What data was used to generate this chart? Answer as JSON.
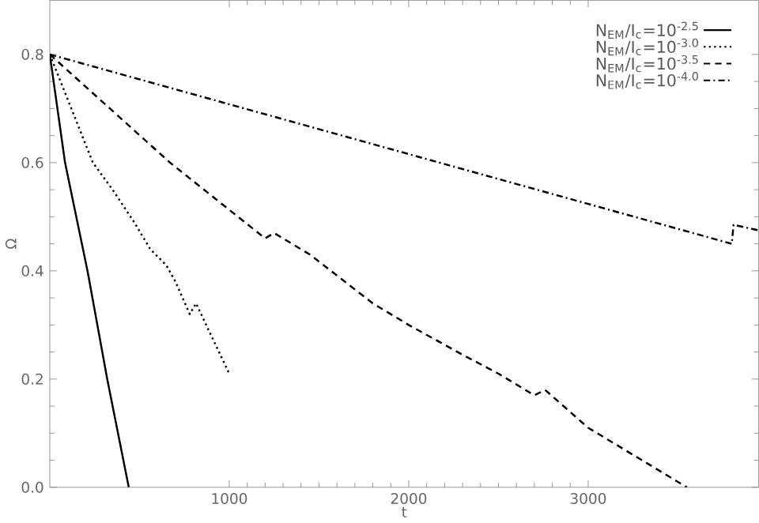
{
  "chart_data": {
    "type": "line",
    "xlabel": "t",
    "ylabel": "Ω",
    "xlim": [
      0,
      3950
    ],
    "ylim": [
      0,
      0.9
    ],
    "xticks": [
      1000,
      2000,
      3000
    ],
    "yticks": [
      {
        "value": 0,
        "label": "0.0"
      },
      {
        "value": 0.2,
        "label": "0.2"
      },
      {
        "value": 0.4,
        "label": "0.4"
      },
      {
        "value": 0.6,
        "label": "0.6"
      },
      {
        "value": 0.8,
        "label": "0.8"
      }
    ],
    "legend": "top right",
    "grid": false,
    "series": [
      {
        "name": "N$_{EM}$/I$_{c}$=10$^{-2.5}$",
        "color": "#000000",
        "line_style": "solid",
        "x": [
          0,
          85,
          210,
          320,
          440
        ],
        "values": [
          0.8,
          0.6,
          0.4,
          0.2,
          0.0
        ]
      },
      {
        "name": "N$_{EM}$/I$_{c}$=10$^{-3.0}$",
        "color": "#000000",
        "line_style": "dotted",
        "x": [
          0,
          120,
          240,
          350,
          470,
          560,
          650,
          700,
          780,
          815,
          900,
          1000
        ],
        "values": [
          0.8,
          0.7,
          0.6,
          0.55,
          0.49,
          0.44,
          0.41,
          0.38,
          0.32,
          0.34,
          0.28,
          0.21
        ]
      },
      {
        "name": "N$_{EM}$/I$_{c}$=10$^{-3.5}$",
        "color": "#000000",
        "line_style": "dashed",
        "x": [
          0,
          670,
          1200,
          1250,
          1450,
          1800,
          2000,
          2300,
          2500,
          2700,
          2760,
          3000,
          3250,
          3550
        ],
        "values": [
          0.8,
          0.6,
          0.46,
          0.47,
          0.43,
          0.34,
          0.3,
          0.245,
          0.21,
          0.17,
          0.18,
          0.11,
          0.06,
          0.0
        ]
      },
      {
        "name": "N$_{EM}$/I$_{c}$=10$^{-4.0}$",
        "color": "#000000",
        "line_style": "dashdot",
        "x": [
          0,
          3800,
          3810,
          3950
        ],
        "values": [
          0.8,
          0.45,
          0.485,
          0.475
        ]
      }
    ]
  }
}
